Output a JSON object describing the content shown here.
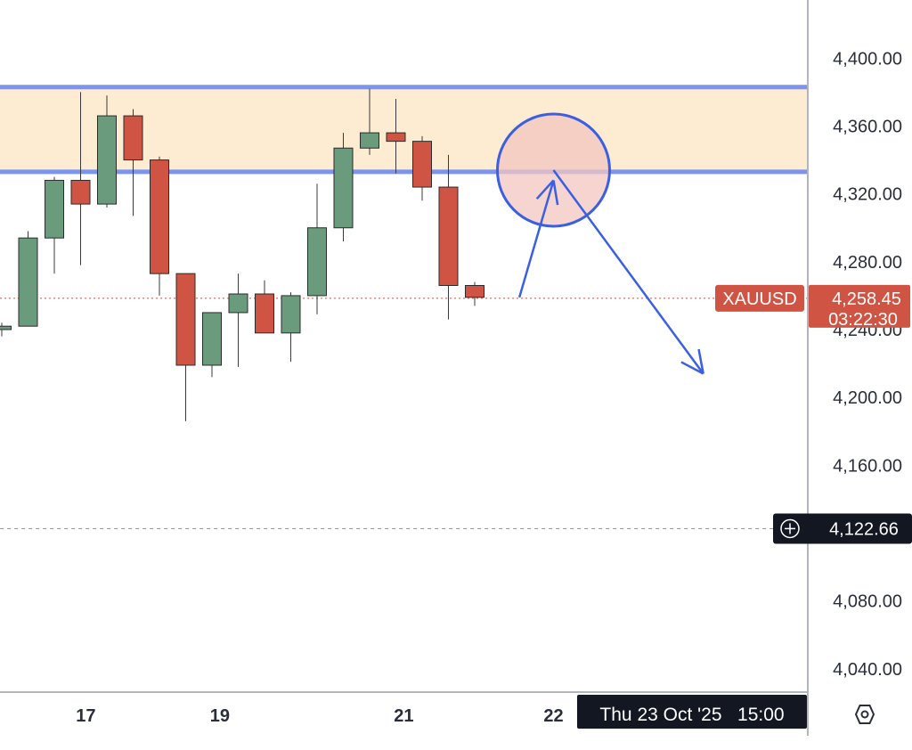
{
  "chart_data": {
    "type": "candlestick",
    "symbol": "XAUUSD",
    "y_ticks": [
      "4,400.00",
      "4,360.00",
      "4,320.00",
      "4,280.00",
      "4,240.00",
      "4,200.00",
      "4,160.00",
      "4,122.66",
      "4,080.00",
      "4,040.00"
    ],
    "y_tick_values": [
      4400,
      4360,
      4320,
      4280,
      4240,
      4200,
      4160,
      4080,
      4040
    ],
    "ylim": [
      4031,
      4428
    ],
    "x_ticks": [
      {
        "label": "17",
        "i": 3.2
      },
      {
        "label": "19",
        "i": 8.3
      },
      {
        "label": "21",
        "i": 15.3
      },
      {
        "label": "22",
        "i": 21.0
      }
    ],
    "candles": [
      {
        "o": 4240,
        "h": 4244,
        "l": 4236,
        "c": 4242
      },
      {
        "o": 4242,
        "h": 4298,
        "l": 4242,
        "c": 4294
      },
      {
        "o": 4294,
        "h": 4330,
        "l": 4273,
        "c": 4328
      },
      {
        "o": 4328,
        "h": 4380,
        "l": 4278,
        "c": 4314
      },
      {
        "o": 4314,
        "h": 4378,
        "l": 4312,
        "c": 4366
      },
      {
        "o": 4366,
        "h": 4370,
        "l": 4307,
        "c": 4340
      },
      {
        "o": 4340,
        "h": 4342,
        "l": 4260,
        "c": 4273
      },
      {
        "o": 4273,
        "h": 4273,
        "l": 4186,
        "c": 4219
      },
      {
        "o": 4219,
        "h": 4250,
        "l": 4212,
        "c": 4250
      },
      {
        "o": 4250,
        "h": 4273,
        "l": 4218,
        "c": 4261
      },
      {
        "o": 4261,
        "h": 4269,
        "l": 4240,
        "c": 4238
      },
      {
        "o": 4238,
        "h": 4262,
        "l": 4221,
        "c": 4260
      },
      {
        "o": 4260,
        "h": 4326,
        "l": 4249,
        "c": 4300
      },
      {
        "o": 4300,
        "h": 4356,
        "l": 4292,
        "c": 4347
      },
      {
        "o": 4347,
        "h": 4382,
        "l": 4343,
        "c": 4356
      },
      {
        "o": 4356,
        "h": 4376,
        "l": 4332,
        "c": 4351
      },
      {
        "o": 4351,
        "h": 4354,
        "l": 4316,
        "c": 4324
      },
      {
        "o": 4324,
        "h": 4343,
        "l": 4246,
        "c": 4266
      },
      {
        "o": 4266,
        "h": 4268,
        "l": 4254,
        "c": 4259
      }
    ],
    "zone": {
      "low": 4333,
      "high": 4383
    },
    "current_price": "4,258.45",
    "current_price_value": 4258.45,
    "countdown": "03:22:30",
    "crosshair_price": "4,122.66",
    "crosshair_price_value": 4122.66,
    "crosshair_time": "Thu 23 Oct '25   15:00",
    "projection": {
      "circle_center": {
        "i": 21.0,
        "price": 4334
      },
      "up_arrow": {
        "from": {
          "i": 19.7,
          "price": 4259
        },
        "to": {
          "i": 21.0,
          "price": 4328
        }
      },
      "down_arrow": {
        "from": {
          "i": 21.0,
          "price": 4334
        },
        "to": {
          "i": 26.7,
          "price": 4214
        }
      }
    },
    "colors": {
      "up": "#6a9b7c",
      "down": "#cf5443",
      "zone_fill": "#fdecd2",
      "zone_line": "#7b93f1",
      "drawing": "#3b5fe3",
      "circle_fill": "#f3c5bf",
      "label_bg": "#cf5443",
      "crosshair_bg": "#131722"
    }
  }
}
